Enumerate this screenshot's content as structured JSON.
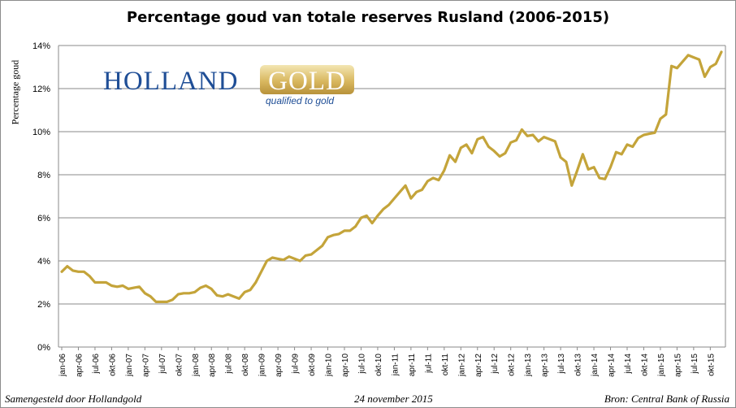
{
  "chart_data": {
    "type": "line",
    "title": "Percentage goud van totale reserves Rusland (2006-2015)",
    "ylabel": "Percentage goud",
    "xlabel": "",
    "ylim": [
      0,
      14
    ],
    "y_ticks": [
      "0%",
      "2%",
      "4%",
      "6%",
      "8%",
      "10%",
      "12%",
      "14%"
    ],
    "y_tick_values": [
      0,
      2,
      4,
      6,
      8,
      10,
      12,
      14
    ],
    "x_tick_labels": [
      "jan-06",
      "apr-06",
      "jul-06",
      "okt-06",
      "jan-07",
      "apr-07",
      "jul-07",
      "okt-07",
      "jan-08",
      "apr-08",
      "jul-08",
      "okt-08",
      "jan-09",
      "apr-09",
      "jul-09",
      "okt-09",
      "jan-10",
      "apr-10",
      "jul-10",
      "okt-10",
      "jan-11",
      "apr-11",
      "jul-11",
      "okt-11",
      "jan-12",
      "apr-12",
      "jul-12",
      "okt-12",
      "jan-13",
      "apr-13",
      "jul-13",
      "okt-13",
      "jan-14",
      "apr-14",
      "jul-14",
      "okt-14",
      "jan-15",
      "apr-15",
      "jul-15",
      "okt-15"
    ],
    "grid": true,
    "line_color": "#c4a43a",
    "series": [
      {
        "values": [
          3.5,
          3.75,
          3.55,
          3.5,
          3.5,
          3.3,
          3.0,
          3.0,
          3.0,
          2.85,
          2.8,
          2.85,
          2.7,
          2.75,
          2.8,
          2.5,
          2.35,
          2.1,
          2.1,
          2.1,
          2.2,
          2.45,
          2.5,
          2.5,
          2.55,
          2.75,
          2.85,
          2.7,
          2.4,
          2.35,
          2.45,
          2.35,
          2.25,
          2.55,
          2.65,
          3.0,
          3.5,
          4.0,
          4.15,
          4.1,
          4.05,
          4.2,
          4.1,
          4.0,
          4.25,
          4.3,
          4.5,
          4.7,
          5.1,
          5.2,
          5.25,
          5.4,
          5.4,
          5.6,
          6.0,
          6.1,
          5.75,
          6.1,
          6.4,
          6.6,
          6.9,
          7.2,
          7.5,
          6.9,
          7.2,
          7.3,
          7.7,
          7.85,
          7.75,
          8.2,
          8.9,
          8.6,
          9.25,
          9.4,
          9.0,
          9.65,
          9.75,
          9.3,
          9.1,
          8.85,
          9.0,
          9.5,
          9.6,
          10.1,
          9.8,
          9.85,
          9.55,
          9.75,
          9.65,
          9.55,
          8.8,
          8.6,
          7.5,
          8.2,
          8.95,
          8.25,
          8.35,
          7.85,
          7.8,
          8.35,
          9.05,
          8.95,
          9.4,
          9.3,
          9.7,
          9.85,
          9.9,
          9.95,
          10.6,
          10.8,
          13.05,
          12.95,
          13.25,
          13.55,
          13.45,
          13.35,
          12.55,
          13.0,
          13.15,
          13.7
        ]
      }
    ]
  },
  "footer": {
    "left": "Samengesteld door Hollandgold",
    "center": "24 november 2015",
    "right": "Bron: Central Bank of Russia"
  },
  "logo": {
    "holland": "HOLLAND",
    "gold": "GOLD",
    "tagline": "qualified to gold"
  }
}
